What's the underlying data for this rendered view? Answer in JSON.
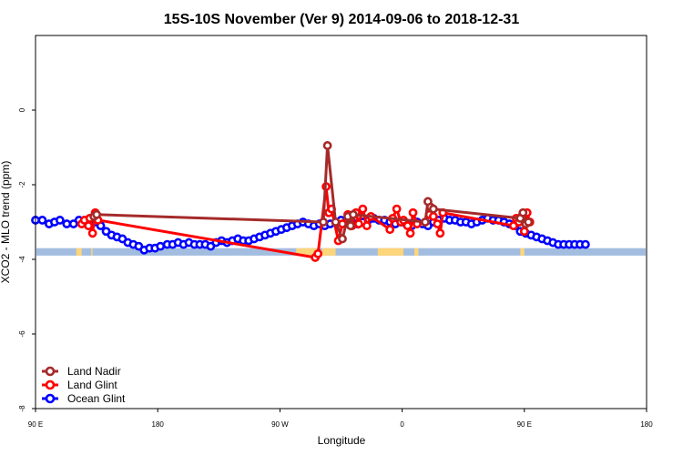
{
  "chart_data": {
    "type": "line",
    "title": "15S-10S November (Ver 9)   2014-09-06 to 2018-12-31",
    "xlabel": "Longitude",
    "ylabel": "XCO2 - MLO trend (ppm)",
    "xlim": [
      90,
      450
    ],
    "ylim": [
      -8,
      2
    ],
    "x_ticks": [
      {
        "value": 90,
        "label": "90 E"
      },
      {
        "value": 180,
        "label": "180"
      },
      {
        "value": 270,
        "label": "90 W"
      },
      {
        "value": 360,
        "label": "0"
      },
      {
        "value": 450,
        "label": "90 E"
      },
      {
        "value": 540,
        "label": "180"
      }
    ],
    "y_ticks": [
      {
        "value": 0,
        "label": "0"
      },
      {
        "value": -2,
        "label": "-2"
      },
      {
        "value": -4,
        "label": "-4"
      },
      {
        "value": -6,
        "label": "-6"
      },
      {
        "value": -8,
        "label": "-8"
      }
    ],
    "band": {
      "y_top": -3.7,
      "y_bottom": -3.9,
      "ocean_color": "#a3bde0",
      "land_color": "#fdd57a"
    },
    "land_segments": [
      [
        120,
        124
      ],
      [
        131,
        132
      ],
      [
        282,
        297
      ],
      [
        301,
        311
      ],
      [
        342,
        361
      ],
      [
        369,
        372
      ],
      [
        447,
        450
      ]
    ],
    "xlim_end": 540,
    "series": [
      {
        "name": "Land Nadir",
        "color": "#a52a2a",
        "x": [
          133,
          135,
          302,
          305,
          311,
          316,
          320,
          322,
          324,
          377,
          379,
          381,
          383,
          447,
          449,
          451,
          453
        ],
        "y": [
          -2.85,
          -2.8,
          -3.0,
          -0.95,
          -3.0,
          -3.45,
          -2.85,
          -3.1,
          -2.8,
          -3.0,
          -2.45,
          -2.6,
          -2.65,
          -2.9,
          -2.75,
          -3.05,
          -3.0
        ]
      },
      {
        "name": "Land Glint",
        "color": "#ff0000",
        "x": [
          124,
          126,
          129,
          130,
          132,
          134,
          136,
          296,
          298,
          304,
          306,
          308,
          313,
          316,
          320,
          323,
          326,
          328,
          331,
          334,
          337,
          351,
          353,
          356,
          359,
          361,
          364,
          366,
          368,
          371,
          377,
          380,
          383,
          386,
          388,
          390,
          442,
          444,
          446,
          448,
          450,
          452,
          454
        ],
        "y": [
          -3.05,
          -2.95,
          -3.1,
          -2.9,
          -3.3,
          -2.75,
          -2.95,
          -3.95,
          -3.85,
          -2.05,
          -2.75,
          -2.65,
          -3.5,
          -3.05,
          -2.8,
          -3.1,
          -2.75,
          -3.05,
          -2.65,
          -3.1,
          -2.85,
          -3.2,
          -2.9,
          -2.65,
          -3.0,
          -2.95,
          -3.1,
          -3.3,
          -2.75,
          -3.05,
          -3.0,
          -2.8,
          -2.85,
          -3.05,
          -3.3,
          -2.75,
          -3.1,
          -2.9,
          -3.0,
          -2.85,
          -3.25,
          -2.75,
          -3.0
        ],
        "path_order": [
          0,
          1,
          2,
          3,
          4,
          5,
          6
        ]
      },
      {
        "name": "Ocean Glint",
        "color": "#0000ff",
        "x": [
          90,
          95,
          100,
          104,
          108,
          113,
          118,
          122,
          126,
          130,
          134,
          138,
          142,
          146,
          150,
          154,
          158,
          162,
          166,
          170,
          174,
          178,
          182,
          187,
          191,
          195,
          199,
          203,
          207,
          211,
          215,
          219,
          223,
          227,
          231,
          235,
          239,
          243,
          247,
          251,
          255,
          259,
          263,
          267,
          271,
          275,
          279,
          283,
          287,
          291,
          295,
          299,
          303,
          307,
          311,
          315,
          319,
          323,
          327,
          331,
          335,
          339,
          343,
          347,
          351,
          355,
          359,
          363,
          367,
          371,
          375,
          379,
          383,
          387,
          391,
          395,
          399,
          403,
          407,
          411,
          415,
          419,
          423,
          427,
          431,
          435,
          439,
          443,
          447,
          451,
          455,
          459,
          463,
          467,
          471,
          475,
          479,
          483,
          487,
          491,
          495
        ],
        "y": [
          -2.95,
          -2.95,
          -3.05,
          -3.0,
          -2.95,
          -3.05,
          -3.05,
          -2.95,
          -3.0,
          -2.95,
          -3.0,
          -3.1,
          -3.25,
          -3.35,
          -3.4,
          -3.45,
          -3.55,
          -3.6,
          -3.65,
          -3.75,
          -3.7,
          -3.7,
          -3.65,
          -3.6,
          -3.6,
          -3.55,
          -3.6,
          -3.55,
          -3.6,
          -3.6,
          -3.6,
          -3.65,
          -3.55,
          -3.5,
          -3.55,
          -3.5,
          -3.45,
          -3.5,
          -3.5,
          -3.45,
          -3.4,
          -3.35,
          -3.3,
          -3.25,
          -3.2,
          -3.15,
          -3.1,
          -3.05,
          -3.0,
          -3.05,
          -3.1,
          -3.05,
          -3.1,
          -3.05,
          -3.0,
          -2.95,
          -3.0,
          -3.0,
          -3.05,
          -3.0,
          -2.95,
          -2.9,
          -2.95,
          -2.95,
          -3.0,
          -3.05,
          -3.0,
          -3.05,
          -3.1,
          -3.0,
          -3.05,
          -3.1,
          -3.0,
          -2.95,
          -2.9,
          -2.95,
          -2.95,
          -3.0,
          -3.0,
          -3.05,
          -3.0,
          -2.95,
          -2.9,
          -2.95,
          -2.95,
          -3.0,
          -3.05,
          -3.1,
          -3.25,
          -3.3,
          -3.35,
          -3.4,
          -3.45,
          -3.5,
          -3.55,
          -3.6,
          -3.6,
          -3.6,
          -3.6,
          -3.6,
          -3.6
        ]
      }
    ],
    "legend_position": "bottom-left",
    "grid": false
  }
}
